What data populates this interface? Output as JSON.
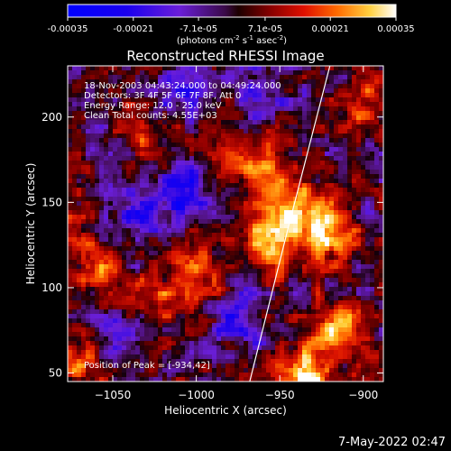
{
  "colorbar": {
    "ticks": [
      {
        "label": "-0.00035",
        "value": -0.00035
      },
      {
        "label": "-0.00021",
        "value": -0.00021
      },
      {
        "label": "-7.1e-05",
        "value": -7.1e-05
      },
      {
        "label": "7.1e-05",
        "value": 7.1e-05
      },
      {
        "label": "0.00021",
        "value": 0.00021
      },
      {
        "label": "0.00035",
        "value": 0.00035
      }
    ],
    "unit_prefix": "(photons cm",
    "unit_exp1": "-2",
    "unit_mid": " s",
    "unit_exp2": "-1",
    "unit_mid2": " asec",
    "unit_exp3": "-2",
    "unit_suffix": ")",
    "range": [
      -0.00035,
      0.00035
    ]
  },
  "chart_data": {
    "type": "heatmap",
    "title": "Reconstructed RHESSI Image",
    "xlabel": "Heliocentric X (arcsec)",
    "ylabel": "Heliocentric Y (arcsec)",
    "xlim": [
      -1077,
      -888
    ],
    "ylim": [
      45,
      230
    ],
    "xticks": [
      -1050,
      -1000,
      -950,
      -900
    ],
    "xtick_labels": [
      "−1050",
      "−1000",
      "−950",
      "−900"
    ],
    "yticks": [
      50,
      100,
      150,
      200
    ],
    "ytick_labels": [
      "50",
      "100",
      "150",
      "200"
    ],
    "annotations": [
      "18-Nov-2003 04:43:24.000 to 04:49:24.000",
      "Detectors: 3F 4F 5F 6F 7F 8F, Att 0",
      "Energy Range: 12.0 - 25.0 keV",
      "Clean     Total counts: 4.55E+03"
    ],
    "peak_label": "Position of Peak = [-934,42]",
    "peak": [
      -934,
      42
    ],
    "hotspots": [
      {
        "x": -955,
        "y": 125,
        "value": 0.0003
      },
      {
        "x": -940,
        "y": 145,
        "value": 0.00028
      },
      {
        "x": -920,
        "y": 130,
        "value": 0.00027
      },
      {
        "x": -960,
        "y": 165,
        "value": 0.00022
      },
      {
        "x": -1000,
        "y": 110,
        "value": 0.00018
      },
      {
        "x": -1060,
        "y": 110,
        "value": 0.0002
      },
      {
        "x": -1030,
        "y": 190,
        "value": 0.00012
      },
      {
        "x": -915,
        "y": 75,
        "value": 0.00024
      },
      {
        "x": -934,
        "y": 48,
        "value": 0.00035
      },
      {
        "x": -1070,
        "y": 58,
        "value": 0.00022
      },
      {
        "x": -1075,
        "y": 140,
        "value": 0.0001
      },
      {
        "x": -900,
        "y": 205,
        "value": 0.00016
      },
      {
        "x": -985,
        "y": 180,
        "value": 0.0001
      },
      {
        "x": -1020,
        "y": 95,
        "value": 0.00014
      }
    ],
    "coldspots": [
      {
        "x": -1005,
        "y": 155,
        "value": -0.00022
      },
      {
        "x": -1035,
        "y": 145,
        "value": -0.0002
      },
      {
        "x": -975,
        "y": 80,
        "value": -0.00018
      },
      {
        "x": -1050,
        "y": 70,
        "value": -0.00014
      },
      {
        "x": -960,
        "y": 215,
        "value": -0.00012
      },
      {
        "x": -1010,
        "y": 215,
        "value": -0.00014
      }
    ],
    "limb_line": [
      [
        -968,
        45
      ],
      [
        -945,
        135
      ],
      [
        -920,
        230
      ]
    ]
  },
  "footer": {
    "date": "7-May-2022 02:47"
  }
}
